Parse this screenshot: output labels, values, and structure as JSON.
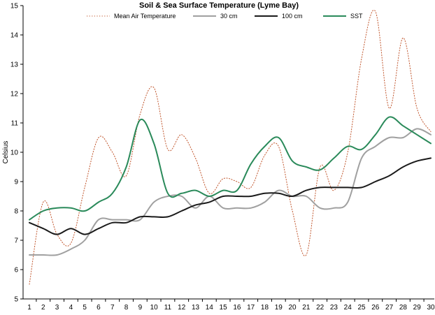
{
  "chart_data": {
    "type": "line",
    "title": "Soil & Sea Surface Temperature (Lyme Bay)",
    "xlabel": "",
    "ylabel": "Celsius",
    "ylim": [
      5,
      15
    ],
    "xlim": [
      1,
      30
    ],
    "x": [
      1,
      2,
      3,
      4,
      5,
      6,
      7,
      8,
      9,
      10,
      11,
      12,
      13,
      14,
      15,
      16,
      17,
      18,
      19,
      20,
      21,
      22,
      23,
      24,
      25,
      26,
      27,
      28,
      29,
      30
    ],
    "xticks": [
      "1",
      "2",
      "3",
      "4",
      "5",
      "6",
      "7",
      "8",
      "9",
      "10",
      "11",
      "12",
      "13",
      "14",
      "15",
      "16",
      "17",
      "18",
      "19",
      "20",
      "21",
      "22",
      "23",
      "24",
      "25",
      "26",
      "27",
      "28",
      "29",
      "30"
    ],
    "yticks": [
      "5",
      "6",
      "7",
      "8",
      "9",
      "10",
      "11",
      "12",
      "13",
      "14",
      "15"
    ],
    "grid": false,
    "legend_position": "top",
    "series": [
      {
        "name": "Mean Air Temperature",
        "color": "#c0542a",
        "style": "dotted",
        "values": [
          5.5,
          8.3,
          7.2,
          6.9,
          8.8,
          10.5,
          10.0,
          9.2,
          11.3,
          12.2,
          10.1,
          10.6,
          9.8,
          8.6,
          9.1,
          9.0,
          8.8,
          9.9,
          10.2,
          8.0,
          6.5,
          9.5,
          8.7,
          10.0,
          13.2,
          14.8,
          11.5,
          13.9,
          11.5,
          10.7
        ]
      },
      {
        "name": "30 cm",
        "color": "#a0a0a0",
        "style": "solid",
        "values": [
          6.5,
          6.5,
          6.5,
          6.7,
          7.0,
          7.7,
          7.7,
          7.7,
          7.7,
          8.3,
          8.5,
          8.5,
          8.1,
          8.5,
          8.1,
          8.1,
          8.1,
          8.3,
          8.7,
          8.5,
          8.5,
          8.1,
          8.1,
          8.3,
          9.8,
          10.2,
          10.5,
          10.5,
          10.8,
          10.6
        ]
      },
      {
        "name": "100 cm",
        "color": "#1a1a1a",
        "style": "solid",
        "values": [
          7.6,
          7.4,
          7.2,
          7.4,
          7.2,
          7.4,
          7.6,
          7.6,
          7.8,
          7.8,
          7.8,
          8.0,
          8.2,
          8.3,
          8.5,
          8.5,
          8.5,
          8.6,
          8.6,
          8.5,
          8.7,
          8.8,
          8.8,
          8.8,
          8.8,
          9.0,
          9.2,
          9.5,
          9.7,
          9.8
        ]
      },
      {
        "name": "SST",
        "color": "#2a8a5a",
        "style": "solid",
        "values": [
          7.7,
          8.0,
          8.1,
          8.1,
          8.0,
          8.3,
          8.6,
          9.5,
          11.1,
          10.3,
          8.6,
          8.6,
          8.7,
          8.5,
          8.7,
          8.7,
          9.6,
          10.2,
          10.5,
          9.7,
          9.5,
          9.4,
          9.8,
          10.2,
          10.1,
          10.6,
          11.2,
          10.9,
          10.6,
          10.3
        ]
      }
    ]
  }
}
